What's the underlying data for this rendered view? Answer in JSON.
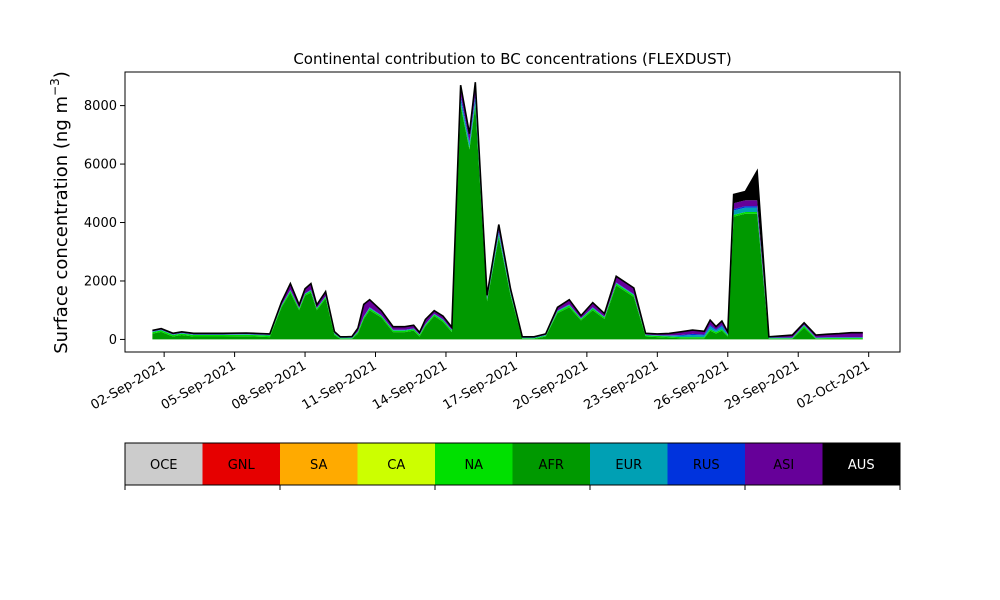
{
  "chart_data": {
    "type": "area",
    "title": "Continental contribution to BC concentrations (FLEXDUST)",
    "xlabel": "",
    "ylabel": "Surface concentration (ng m",
    "ylabel_sup": "−3",
    "ylabel_close": ")",
    "x_ticks": [
      "02-Sep-2021",
      "05-Sep-2021",
      "08-Sep-2021",
      "11-Sep-2021",
      "14-Sep-2021",
      "17-Sep-2021",
      "20-Sep-2021",
      "23-Sep-2021",
      "26-Sep-2021",
      "29-Sep-2021",
      "02-Oct-2021"
    ],
    "y_ticks": [
      "0",
      "2000",
      "4000",
      "6000",
      "8000"
    ],
    "ylim": [
      -430,
      9150
    ],
    "xlim": [
      "2021-08-31T08:00",
      "2021-10-03T08:00"
    ],
    "stack_order": [
      "OCE",
      "GNL",
      "SA",
      "CA",
      "NA",
      "AFR",
      "EUR",
      "RUS",
      "ASI",
      "AUS"
    ],
    "legend": [
      {
        "name": "OCE",
        "color": "#cccccc",
        "text_color": "#000000"
      },
      {
        "name": "GNL",
        "color": "#e60000",
        "text_color": "#000000"
      },
      {
        "name": "SA",
        "color": "#ffaa00",
        "text_color": "#000000"
      },
      {
        "name": "CA",
        "color": "#ccff00",
        "text_color": "#000000"
      },
      {
        "name": "NA",
        "color": "#00e000",
        "text_color": "#000000"
      },
      {
        "name": "AFR",
        "color": "#009900",
        "text_color": "#000000"
      },
      {
        "name": "EUR",
        "color": "#00a0b4",
        "text_color": "#000000"
      },
      {
        "name": "RUS",
        "color": "#0033dd",
        "text_color": "#000000"
      },
      {
        "name": "ASI",
        "color": "#660099",
        "text_color": "#000000"
      },
      {
        "name": "AUS",
        "color": "#000000",
        "text_color": "#ffffff"
      }
    ],
    "x": [
      "2021-09-01T12:00",
      "2021-09-01T21:00",
      "2021-09-02T09:00",
      "2021-09-02T18:00",
      "2021-09-03T06:00",
      "2021-09-03T21:00",
      "2021-09-04T12:00",
      "2021-09-05T12:00",
      "2021-09-06T12:00",
      "2021-09-07T00:00",
      "2021-09-07T09:00",
      "2021-09-07T18:00",
      "2021-09-08T00:00",
      "2021-09-08T06:00",
      "2021-09-08T12:00",
      "2021-09-08T21:00",
      "2021-09-09T06:00",
      "2021-09-09T12:00",
      "2021-09-09T18:00",
      "2021-09-10T00:00",
      "2021-09-10T06:00",
      "2021-09-10T12:00",
      "2021-09-10T18:00",
      "2021-09-11T06:00",
      "2021-09-11T18:00",
      "2021-09-12T06:00",
      "2021-09-12T15:00",
      "2021-09-12T21:00",
      "2021-09-13T03:00",
      "2021-09-13T12:00",
      "2021-09-13T21:00",
      "2021-09-14T06:00",
      "2021-09-14T15:00",
      "2021-09-15T00:00",
      "2021-09-15T06:00",
      "2021-09-15T18:00",
      "2021-09-16T06:00",
      "2021-09-16T18:00",
      "2021-09-17T06:00",
      "2021-09-17T18:00",
      "2021-09-18T06:00",
      "2021-09-18T18:00",
      "2021-09-19T06:00",
      "2021-09-19T18:00",
      "2021-09-20T06:00",
      "2021-09-20T18:00",
      "2021-09-21T06:00",
      "2021-09-22T00:00",
      "2021-09-22T12:00",
      "2021-09-23T00:00",
      "2021-09-23T12:00",
      "2021-09-24T00:00",
      "2021-09-24T12:00",
      "2021-09-25T00:00",
      "2021-09-25T06:00",
      "2021-09-25T12:00",
      "2021-09-25T18:00",
      "2021-09-26T00:00",
      "2021-09-26T06:00",
      "2021-09-26T18:00",
      "2021-09-27T06:00",
      "2021-09-27T18:00",
      "2021-09-28T06:00",
      "2021-09-28T18:00",
      "2021-09-29T06:00",
      "2021-09-29T18:00",
      "2021-09-30T06:00",
      "2021-09-30T18:00",
      "2021-10-01T06:00",
      "2021-10-01T18:00"
    ],
    "series": [
      {
        "name": "AFR",
        "values": [
          200,
          260,
          100,
          150,
          100,
          100,
          100,
          110,
          80,
          1100,
          1600,
          1000,
          1500,
          1600,
          1000,
          1400,
          150,
          20,
          20,
          20,
          200,
          700,
          1000,
          750,
          250,
          250,
          300,
          100,
          450,
          800,
          600,
          250,
          8000,
          6500,
          8000,
          1300,
          3500,
          1500,
          20,
          20,
          100,
          900,
          1100,
          650,
          1000,
          700,
          1850,
          1450,
          100,
          80,
          60,
          40,
          40,
          40,
          300,
          200,
          300,
          100,
          4200,
          4300,
          4300,
          20,
          20,
          20,
          400,
          20,
          20,
          20,
          20,
          20
        ]
      },
      {
        "name": "NA",
        "values": [
          50,
          50,
          50,
          50,
          50,
          50,
          50,
          50,
          50,
          50,
          60,
          50,
          50,
          60,
          50,
          50,
          40,
          20,
          20,
          20,
          50,
          50,
          60,
          50,
          50,
          50,
          50,
          50,
          50,
          50,
          50,
          50,
          60,
          60,
          60,
          50,
          60,
          50,
          20,
          20,
          30,
          50,
          60,
          50,
          60,
          50,
          60,
          60,
          40,
          40,
          40,
          40,
          40,
          40,
          50,
          50,
          50,
          40,
          60,
          60,
          60,
          20,
          20,
          20,
          60,
          20,
          30,
          30,
          30,
          30
        ]
      },
      {
        "name": "EUR",
        "values": [
          20,
          20,
          20,
          20,
          20,
          20,
          20,
          20,
          20,
          20,
          30,
          20,
          20,
          30,
          20,
          20,
          20,
          20,
          20,
          20,
          20,
          30,
          30,
          20,
          20,
          20,
          20,
          20,
          20,
          20,
          30,
          20,
          200,
          150,
          200,
          50,
          100,
          50,
          20,
          20,
          20,
          30,
          30,
          20,
          30,
          20,
          30,
          30,
          20,
          20,
          30,
          50,
          70,
          60,
          100,
          60,
          100,
          40,
          150,
          150,
          150,
          20,
          20,
          20,
          30,
          20,
          20,
          20,
          20,
          20
        ]
      },
      {
        "name": "RUS",
        "values": [
          5,
          5,
          5,
          5,
          5,
          5,
          5,
          5,
          5,
          10,
          10,
          10,
          10,
          10,
          10,
          10,
          5,
          5,
          5,
          5,
          10,
          10,
          10,
          10,
          10,
          10,
          10,
          5,
          10,
          10,
          10,
          10,
          100,
          50,
          100,
          20,
          50,
          20,
          5,
          5,
          5,
          10,
          10,
          10,
          10,
          10,
          10,
          10,
          5,
          5,
          10,
          20,
          40,
          30,
          50,
          30,
          50,
          10,
          50,
          50,
          50,
          5,
          5,
          5,
          10,
          5,
          5,
          5,
          5,
          5
        ]
      },
      {
        "name": "ASI",
        "values": [
          30,
          30,
          30,
          30,
          30,
          30,
          30,
          30,
          30,
          100,
          200,
          100,
          150,
          200,
          100,
          150,
          50,
          20,
          20,
          30,
          100,
          400,
          250,
          150,
          100,
          100,
          100,
          60,
          150,
          100,
          100,
          80,
          300,
          250,
          400,
          80,
          200,
          100,
          20,
          20,
          30,
          100,
          150,
          80,
          150,
          100,
          200,
          200,
          40,
          40,
          60,
          100,
          120,
          100,
          150,
          90,
          120,
          60,
          200,
          200,
          200,
          20,
          50,
          80,
          60,
          80,
          100,
          120,
          150,
          150
        ]
      },
      {
        "name": "AUS",
        "values": [
          5,
          5,
          5,
          5,
          5,
          5,
          5,
          5,
          5,
          5,
          10,
          5,
          5,
          10,
          5,
          5,
          5,
          5,
          5,
          5,
          5,
          10,
          10,
          5,
          5,
          5,
          5,
          5,
          5,
          5,
          10,
          5,
          40,
          30,
          40,
          10,
          20,
          10,
          5,
          5,
          5,
          10,
          10,
          5,
          10,
          5,
          10,
          10,
          5,
          5,
          5,
          10,
          10,
          10,
          10,
          10,
          10,
          5,
          300,
          300,
          1000,
          5,
          5,
          5,
          10,
          5,
          5,
          5,
          5,
          5
        ]
      }
    ]
  }
}
